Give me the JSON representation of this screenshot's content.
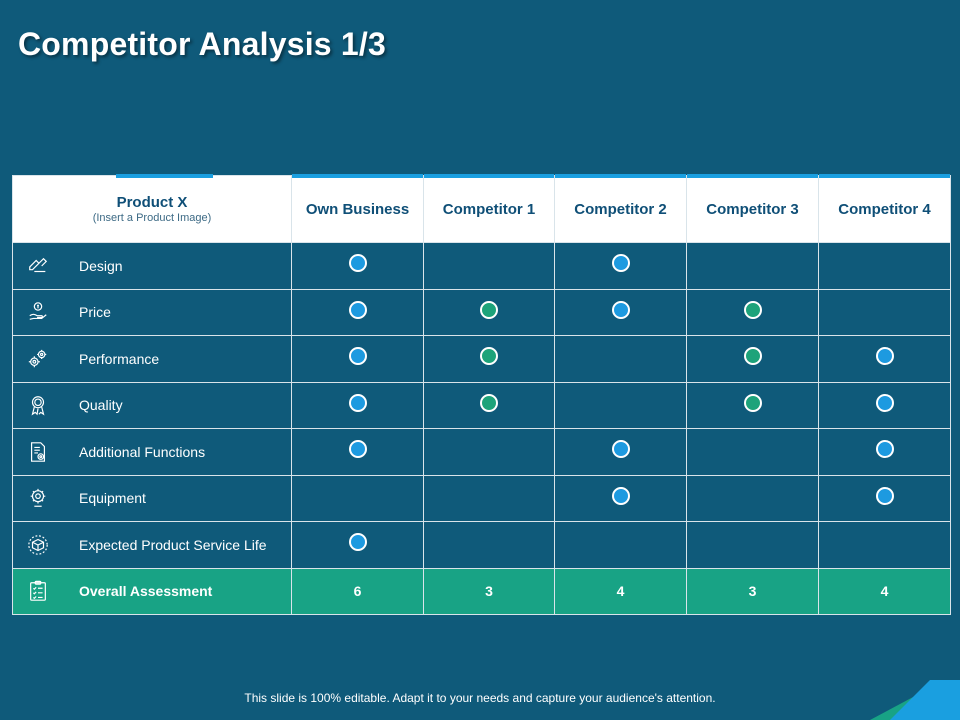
{
  "title": "Competitor Analysis 1/3",
  "header": {
    "product": "Product X",
    "product_note": "(Insert a Product Image)",
    "columns": [
      "Own Business",
      "Competitor 1",
      "Competitor 2",
      "Competitor 3",
      "Competitor 4"
    ]
  },
  "rows": [
    {
      "label": "Design",
      "icon": "design-icon",
      "marks": [
        "blue",
        "",
        "blue",
        "",
        ""
      ]
    },
    {
      "label": "Price",
      "icon": "price-icon",
      "marks": [
        "blue",
        "green",
        "blue",
        "green",
        ""
      ]
    },
    {
      "label": "Performance",
      "icon": "gears-icon",
      "marks": [
        "blue",
        "green",
        "",
        "green",
        "blue"
      ]
    },
    {
      "label": "Quality",
      "icon": "award-ribbon-icon",
      "marks": [
        "blue",
        "green",
        "",
        "green",
        "blue"
      ]
    },
    {
      "label": "Additional Functions",
      "icon": "document-gear-icon",
      "marks": [
        "blue",
        "",
        "blue",
        "",
        "blue"
      ]
    },
    {
      "label": "Equipment",
      "icon": "equipment-gear-icon",
      "marks": [
        "",
        "",
        "blue",
        "",
        "blue"
      ]
    },
    {
      "label": "Expected Product Service Life",
      "icon": "package-box-icon",
      "marks": [
        "blue",
        "",
        "",
        "",
        ""
      ]
    }
  ],
  "total": {
    "label": "Overall Assessment",
    "icon": "clipboard-checklist-icon",
    "values": [
      "6",
      "3",
      "4",
      "3",
      "4"
    ]
  },
  "footer": "This slide is 100% editable. Adapt it to your needs and capture your audience's attention.",
  "colors": {
    "background": "#0f5a7a",
    "accent_blue": "#1d9ae0",
    "accent_green": "#18a385",
    "header_text": "#0f4f77"
  }
}
